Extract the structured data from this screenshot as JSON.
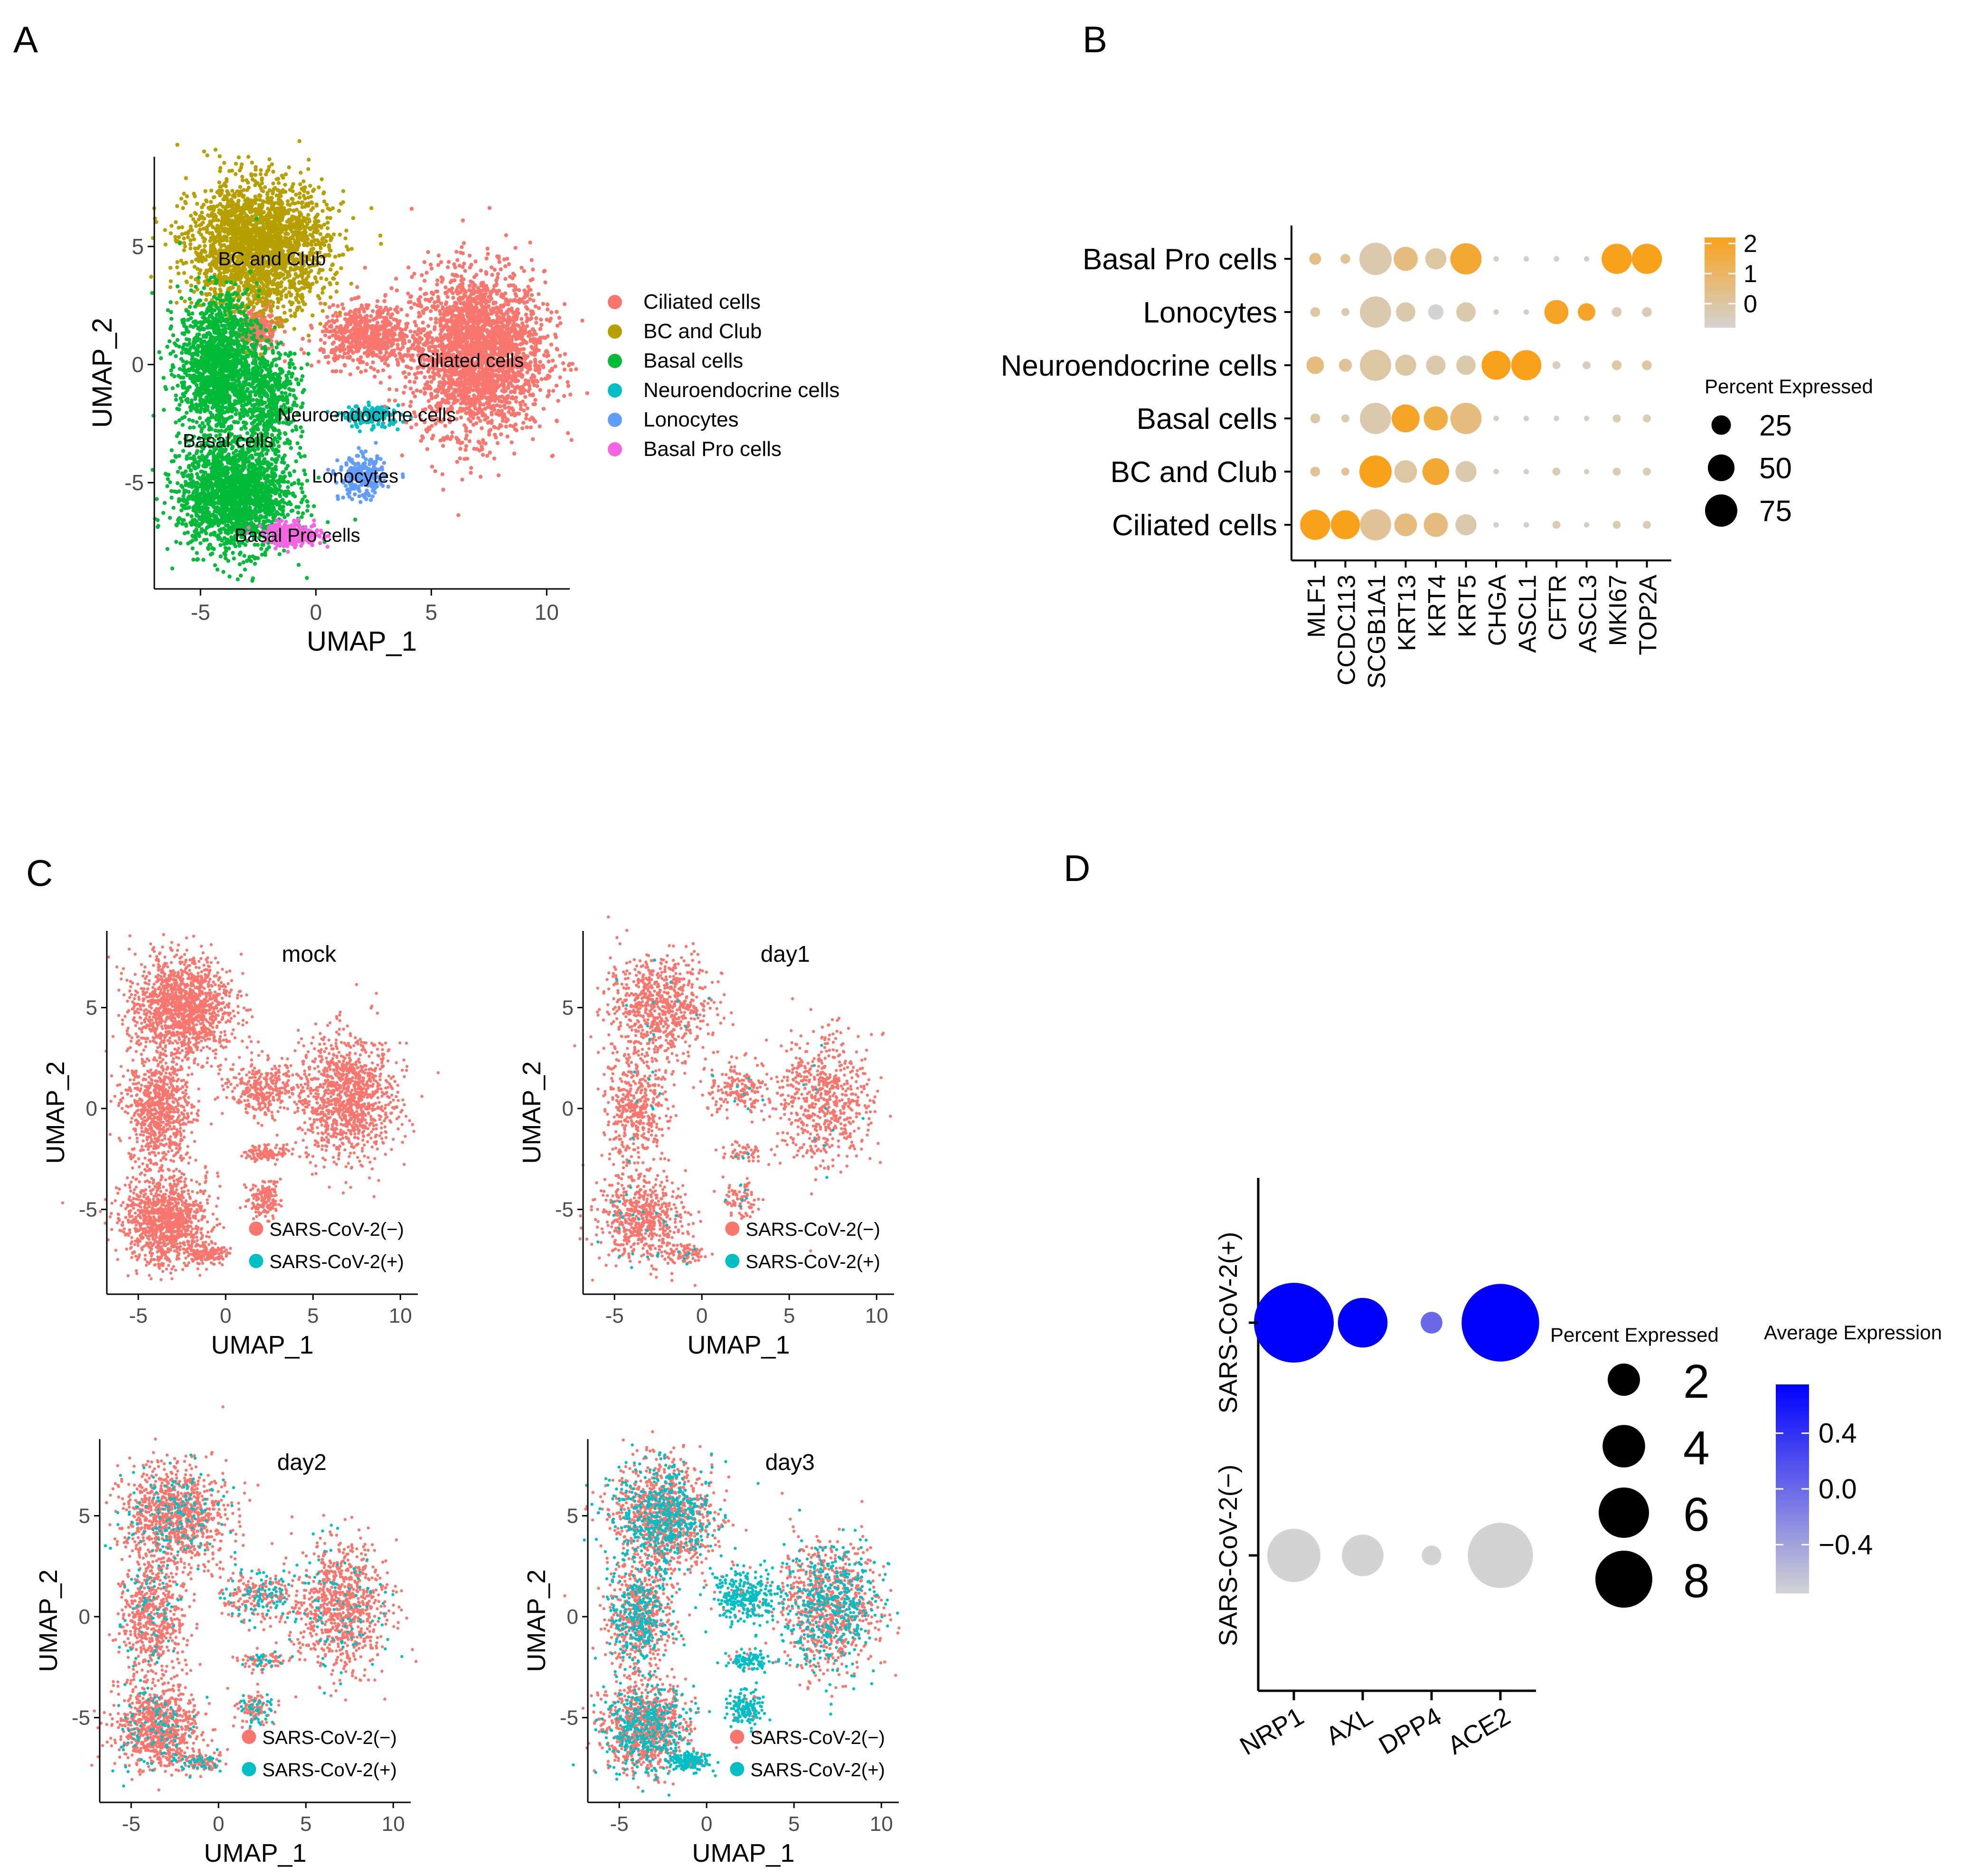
{
  "panel_labels": [
    "A",
    "B",
    "C",
    "D"
  ],
  "colors": {
    "ciliated": "#F8766D",
    "bc_club": "#B79F00",
    "basal": "#00BA38",
    "neuroendocrine": "#00BFC4",
    "lonocytes": "#619CFF",
    "basal_pro": "#F564E3",
    "neg": "#F8766D",
    "pos": "#00BFC4",
    "dot_low": "#D3D3D3",
    "dot_high_B": "#F9A11B",
    "dot_high_D": "#0000FF"
  },
  "chart_data": [
    {
      "id": "A",
      "type": "scatter",
      "title": "",
      "xlabel": "UMAP_1",
      "ylabel": "UMAP_2",
      "xlim": [
        -7,
        11
      ],
      "ylim": [
        -9.5,
        8.8
      ],
      "xticks": [
        "-5",
        "0",
        "5",
        "10"
      ],
      "xtick_values": [
        -5,
        0,
        5,
        10
      ],
      "yticks": [
        "5",
        "0",
        "-5"
      ],
      "ytick_values": [
        5,
        0,
        -5
      ],
      "legend_position": "right",
      "legend": [
        "Ciliated cells",
        "BC and Club",
        "Basal cells",
        "Neuroendocrine cells",
        "Lonocytes",
        "Basal Pro cells"
      ],
      "clusters": [
        {
          "name": "Ciliated cells",
          "label": "Ciliated cells",
          "label_xy": [
            6.7,
            -0.1
          ],
          "color_key": "ciliated",
          "regions": [
            {
              "cx": 7.0,
              "cy": 0.5,
              "rx": 3.2,
              "ry": 3.8,
              "n": 2600
            },
            {
              "cx": 2.2,
              "cy": 1.2,
              "rx": 2.2,
              "ry": 1.4,
              "n": 600
            },
            {
              "cx": -2.5,
              "cy": 1.5,
              "rx": 1.0,
              "ry": 1.0,
              "n": 250
            }
          ]
        },
        {
          "name": "BC and Club",
          "label": "BC and Club",
          "label_xy": [
            -1.9,
            4.2
          ],
          "color_key": "bc_club",
          "regions": [
            {
              "cx": -2.5,
              "cy": 5.0,
              "rx": 3.3,
              "ry": 3.0,
              "n": 2400
            }
          ]
        },
        {
          "name": "Basal cells",
          "label": "Basal cells",
          "label_xy": [
            -3.8,
            -3.5
          ],
          "color_key": "basal",
          "regions": [
            {
              "cx": -4.2,
              "cy": 0.0,
              "rx": 1.9,
              "ry": 3.2,
              "n": 1500
            },
            {
              "cx": -3.5,
              "cy": -5.5,
              "rx": 2.7,
              "ry": 2.6,
              "n": 1900
            },
            {
              "cx": -2.0,
              "cy": -1.5,
              "rx": 1.5,
              "ry": 2.5,
              "n": 500
            }
          ]
        },
        {
          "name": "Neuroendocrine cells",
          "label": "Neuroendocrine cells",
          "label_xy": [
            2.2,
            -2.4
          ],
          "color_key": "neuroendocrine",
          "regions": [
            {
              "cx": 2.4,
              "cy": -2.2,
              "rx": 1.4,
              "ry": 0.5,
              "n": 160
            }
          ]
        },
        {
          "name": "Lonocytes",
          "label": "Lonocytes",
          "label_xy": [
            1.7,
            -5.0
          ],
          "color_key": "lonocytes",
          "regions": [
            {
              "cx": 2.0,
              "cy": -4.8,
              "rx": 1.1,
              "ry": 1.0,
              "n": 260
            }
          ]
        },
        {
          "name": "Basal Pro cells",
          "label": "Basal Pro cells",
          "label_xy": [
            -0.8,
            -7.5
          ],
          "color_key": "basal_pro",
          "regions": [
            {
              "cx": -1.0,
              "cy": -7.2,
              "rx": 1.4,
              "ry": 0.55,
              "n": 260
            }
          ]
        }
      ]
    },
    {
      "id": "B",
      "type": "dot",
      "title": "",
      "xlabel": "",
      "ylabel": "",
      "genes": [
        "MLF1",
        "CCDC113",
        "SCGB1A1",
        "KRT13",
        "KRT4",
        "KRT5",
        "CHGA",
        "ASCL1",
        "CFTR",
        "ASCL3",
        "MKI67",
        "TOP2A"
      ],
      "cell_types": [
        "Basal Pro cells",
        "Lonocytes",
        "Neuroendocrine cells",
        "Basal cells",
        "BC and Club",
        "Ciliated cells"
      ],
      "pct": [
        [
          8,
          5,
          75,
          40,
          30,
          70,
          1,
          1,
          1,
          1,
          65,
          65
        ],
        [
          5,
          3,
          70,
          25,
          15,
          25,
          1,
          1,
          40,
          20,
          5,
          5
        ],
        [
          20,
          10,
          70,
          30,
          25,
          25,
          60,
          65,
          3,
          3,
          5,
          5
        ],
        [
          5,
          3,
          70,
          55,
          40,
          70,
          1,
          1,
          1,
          1,
          3,
          3
        ],
        [
          5,
          3,
          75,
          35,
          50,
          30,
          1,
          1,
          3,
          1,
          3,
          3
        ],
        [
          65,
          60,
          70,
          35,
          40,
          30,
          1,
          1,
          3,
          1,
          3,
          3
        ]
      ],
      "avg": [
        [
          0.5,
          0.2,
          -0.2,
          0.6,
          0.0,
          1.8,
          -0.5,
          -0.5,
          -0.5,
          -0.5,
          2.2,
          2.2
        ],
        [
          0.0,
          -0.2,
          -0.2,
          -0.2,
          -0.8,
          -0.2,
          -0.5,
          -0.5,
          2.0,
          2.0,
          -0.3,
          -0.3
        ],
        [
          0.6,
          0.2,
          0.0,
          0.0,
          -0.2,
          -0.2,
          2.2,
          2.2,
          -0.5,
          -0.5,
          0.0,
          0.0
        ],
        [
          0.0,
          -0.2,
          -0.2,
          2.0,
          1.5,
          0.6,
          -0.5,
          -0.5,
          -0.5,
          -0.5,
          -0.3,
          -0.3
        ],
        [
          0.2,
          0.2,
          2.2,
          0.0,
          1.8,
          -0.2,
          -0.5,
          -0.5,
          -0.3,
          -0.5,
          -0.3,
          -0.3
        ],
        [
          2.2,
          2.2,
          0.2,
          0.6,
          0.6,
          -0.2,
          -0.5,
          -0.5,
          -0.3,
          -0.5,
          -0.3,
          -0.3
        ]
      ],
      "color_title": "",
      "color_ticks": [
        "2",
        "1",
        "0"
      ],
      "color_tick_values": [
        2,
        1,
        0
      ],
      "color_range": [
        -0.8,
        2.2
      ],
      "size_title": "Percent Expressed",
      "size_legend": [
        "25",
        "50",
        "75"
      ],
      "size_values": [
        25,
        50,
        75
      ]
    },
    {
      "id": "C",
      "type": "scatter",
      "xlabel": "UMAP_1",
      "ylabel": "UMAP_2",
      "xticks": [
        "-5",
        "0",
        "5",
        "10"
      ],
      "xtick_values": [
        -5,
        0,
        5,
        10
      ],
      "yticks": [
        "5",
        "0",
        "-5"
      ],
      "ytick_values": [
        5,
        0,
        -5
      ],
      "legend": [
        "SARS-CoV-2(−)",
        "SARS-CoV-2(+)"
      ],
      "legend_position": "bottom-right",
      "subplots": [
        {
          "title": "mock",
          "density": 1.0,
          "pos_fraction": 0.0
        },
        {
          "title": "day1",
          "density": 0.55,
          "pos_fraction": 0.02
        },
        {
          "title": "day2",
          "density": 0.8,
          "pos_fraction": 0.12
        },
        {
          "title": "day3",
          "density": 1.0,
          "pos_fraction": 0.35
        }
      ]
    },
    {
      "id": "D",
      "type": "dot",
      "genes": [
        "NRP1",
        "AXL",
        "DPP4",
        "ACE2"
      ],
      "groups": [
        "SARS-CoV-2(+)",
        "SARS-CoV-2(−)"
      ],
      "pct": [
        [
          8.5,
          3.0,
          0.4,
          8.0
        ],
        [
          3.5,
          2.0,
          0.3,
          5.5
        ]
      ],
      "avg": [
        [
          0.75,
          0.75,
          0.0,
          0.75
        ],
        [
          -0.75,
          -0.75,
          -0.75,
          -0.75
        ]
      ],
      "size_title": "Percent Expressed",
      "size_legend": [
        "2",
        "4",
        "6",
        "8"
      ],
      "size_values": [
        2,
        4,
        6,
        8
      ],
      "color_title": "Average Expression",
      "color_ticks": [
        "0.4",
        "0.0",
        "−0.4"
      ],
      "color_tick_values": [
        0.4,
        0.0,
        -0.4
      ],
      "color_range": [
        -0.75,
        0.75
      ]
    }
  ]
}
